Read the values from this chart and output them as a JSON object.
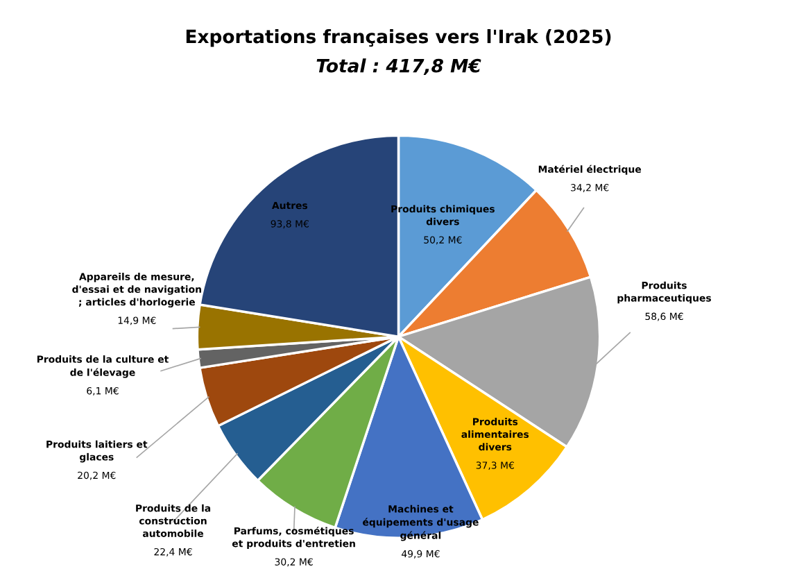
{
  "chart_data": {
    "type": "pie",
    "title": "Exportations françaises vers l'Irak (2025)",
    "subtitle": "Total : 417,8 M€",
    "categories": [
      "Produits chimiques\ndivers",
      "Matériel électrique",
      "Produits\npharmaceutiques",
      "Produits\nalimentaires\ndivers",
      "Machines et\néquipements d'usage\ngénéral",
      "Parfums, cosmétiques\net produits d'entretien",
      "Produits de la\nconstruction\nautomobile",
      "Produits laitiers et\nglaces",
      "Produits de la culture et\nde l'élevage",
      "Appareils de mesure,\nd'essai et de navigation\n; articles d'horlogerie",
      "Autres"
    ],
    "values": [
      50.2,
      34.2,
      58.6,
      37.3,
      49.9,
      30.2,
      22.4,
      20.2,
      6.1,
      14.9,
      93.8
    ],
    "value_labels": [
      "50,2 M€",
      "34,2 M€",
      "58,6 M€",
      "37,3 M€",
      "49,9 M€",
      "30,2 M€",
      "22,4 M€",
      "20,2 M€",
      "6,1 M€",
      "14,9 M€",
      "93,8 M€"
    ],
    "colors": [
      "#5b9bd5",
      "#ed7d31",
      "#a5a5a5",
      "#ffc000",
      "#4472c4",
      "#70ad47",
      "#255e91",
      "#9e480e",
      "#636363",
      "#997300",
      "#264478"
    ],
    "legend": false
  }
}
